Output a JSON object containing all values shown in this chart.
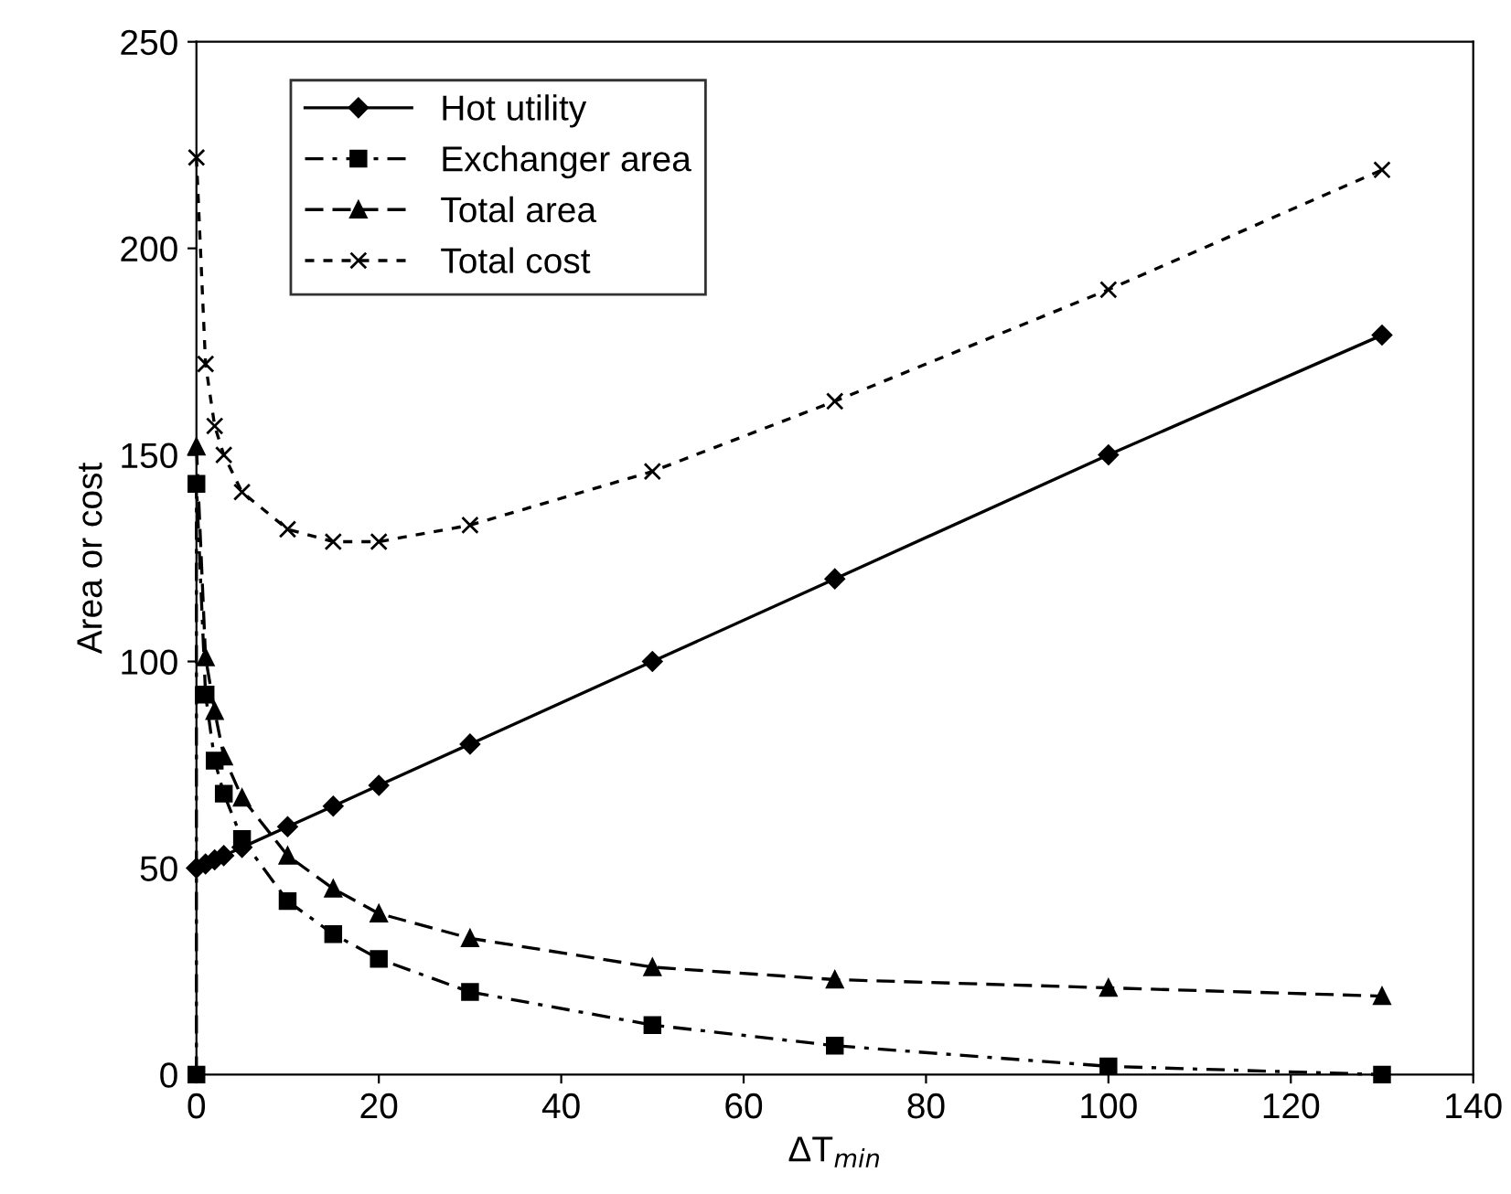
{
  "chart_data": {
    "type": "line",
    "xlabel": "ΔT$_{min}$",
    "ylabel": "Area or cost",
    "xlim": [
      0,
      140
    ],
    "xticks": [
      0,
      20,
      40,
      60,
      80,
      100,
      120,
      140
    ],
    "ylim": [
      0,
      250
    ],
    "yticks": [
      0,
      50,
      100,
      150,
      200,
      250
    ],
    "grid": false,
    "legend": "top left",
    "series": [
      {
        "name": "Hot utility",
        "color": "#000000",
        "marker": "diamond",
        "line_style": "solid",
        "x": [
          0,
          1,
          2,
          3,
          5,
          10,
          15,
          20,
          30,
          50,
          70,
          100,
          130
        ],
        "values": [
          50,
          51,
          52,
          53,
          55,
          60,
          65,
          70,
          80,
          100,
          120,
          150,
          179
        ]
      },
      {
        "name": "Exchanger area",
        "color": "#000000",
        "marker": "square",
        "line_style": "dashdot",
        "x": [
          0,
          0,
          1,
          2,
          3,
          5,
          10,
          15,
          20,
          30,
          50,
          70,
          100,
          130
        ],
        "values": [
          0,
          143,
          92,
          76,
          68,
          57,
          42,
          34,
          28,
          20,
          12,
          7,
          2,
          0
        ]
      },
      {
        "name": "Total area",
        "color": "#000000",
        "marker": "triangle",
        "line_style": "dashed",
        "x": [
          0,
          1,
          2,
          3,
          5,
          10,
          15,
          20,
          30,
          50,
          70,
          100,
          130
        ],
        "values": [
          152,
          101,
          88,
          77,
          67,
          53,
          45,
          39,
          33,
          26,
          23,
          21,
          19
        ]
      },
      {
        "name": "Total cost",
        "color": "#000000",
        "marker": "cross",
        "line_style": "dotted",
        "x": [
          0,
          1,
          2,
          3,
          5,
          10,
          15,
          20,
          30,
          50,
          70,
          100,
          130
        ],
        "values": [
          222,
          172,
          157,
          150,
          141,
          132,
          129,
          129,
          133,
          146,
          163,
          190,
          219
        ]
      }
    ]
  }
}
